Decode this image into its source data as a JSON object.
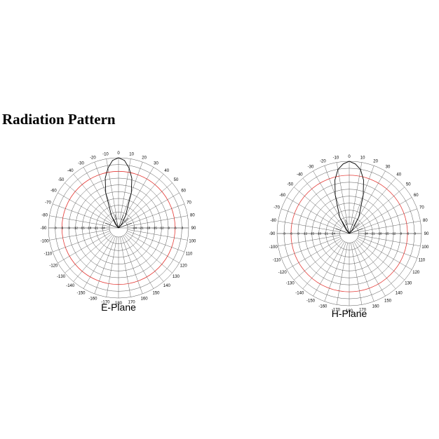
{
  "title": "Radiation Pattern",
  "colors": {
    "grid": "#555555",
    "reference_ring": "#e53935",
    "pattern": "#000000",
    "background": "#ffffff"
  },
  "chart_data": [
    {
      "type": "polar",
      "title": "E-Plane",
      "angle_unit": "degrees",
      "angle_ticks": [
        0,
        10,
        20,
        30,
        40,
        50,
        60,
        70,
        80,
        90,
        100,
        110,
        120,
        130,
        140,
        150,
        160,
        170,
        180,
        -170,
        -160,
        -150,
        -140,
        -130,
        -120,
        -110,
        -100,
        -90,
        -80,
        -70,
        -60,
        -50,
        -40,
        -30,
        -20,
        -10
      ],
      "radial_tick_labels": [
        "-3",
        "-6",
        "-9",
        "-12",
        "-15",
        "-18",
        "-21",
        "-24"
      ],
      "grid": true,
      "ring_count": 10,
      "reference_ring_index": 2,
      "series": [
        {
          "angles": [
            -40,
            -30,
            -20,
            -15,
            -10,
            -5,
            0,
            5,
            10,
            15,
            20,
            30,
            40
          ],
          "values": [
            -28,
            -24,
            -14,
            -8,
            -4,
            -1,
            0,
            -1,
            -4,
            -8,
            -14,
            -24,
            -28
          ]
        }
      ]
    },
    {
      "type": "polar",
      "title": "H-Plane",
      "angle_unit": "degrees",
      "angle_ticks": [
        0,
        10,
        20,
        30,
        40,
        50,
        60,
        70,
        80,
        90,
        100,
        110,
        120,
        130,
        140,
        150,
        160,
        170,
        180,
        -170,
        -160,
        -150,
        -140,
        -130,
        -120,
        -110,
        -100,
        -90,
        -80,
        -70,
        -60,
        -50,
        -40,
        -30,
        -20,
        -10
      ],
      "radial_tick_labels": [
        "-3",
        "-6",
        "-9",
        "-12",
        "-15",
        "-18",
        "-21",
        "-24"
      ],
      "grid": true,
      "ring_count": 10,
      "reference_ring_index": 2,
      "series": [
        {
          "angles": [
            -40,
            -30,
            -20,
            -15,
            -10,
            -5,
            0,
            5,
            10,
            15,
            20,
            30,
            40
          ],
          "values": [
            -28,
            -22,
            -13,
            -7,
            -3,
            -1,
            0,
            -1,
            -3,
            -7,
            -13,
            -22,
            -28
          ]
        }
      ]
    }
  ]
}
